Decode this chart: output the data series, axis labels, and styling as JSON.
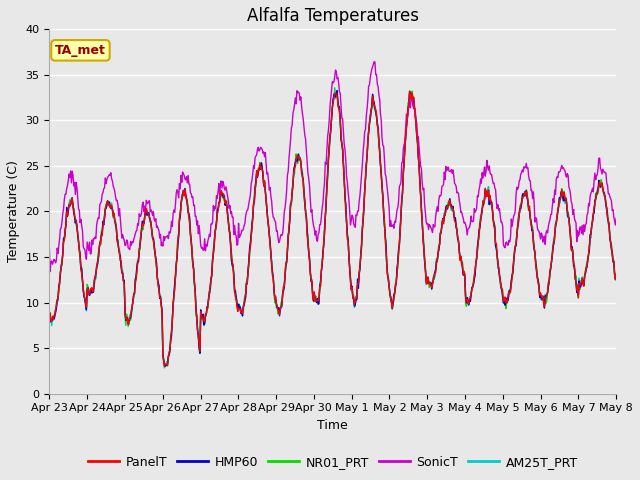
{
  "title": "Alfalfa Temperatures",
  "xlabel": "Time",
  "ylabel": "Temperature (C)",
  "ylim": [
    0,
    40
  ],
  "yticks": [
    0,
    5,
    10,
    15,
    20,
    25,
    30,
    35,
    40
  ],
  "fig_bg_color": "#e8e8e8",
  "plot_bg_color": "#e8e8e8",
  "series_colors": {
    "PanelT": "#ff0000",
    "HMP60": "#0000cc",
    "NR01_PRT": "#00dd00",
    "SonicT": "#cc00cc",
    "AM25T_PRT": "#00cccc"
  },
  "annotation_text": "TA_met",
  "annotation_color": "#990000",
  "annotation_bg": "#ffffaa",
  "annotation_border": "#ccaa00",
  "x_tick_labels": [
    "Apr 23",
    "Apr 24",
    "Apr 25",
    "Apr 26",
    "Apr 27",
    "Apr 28",
    "Apr 29",
    "Apr 30",
    "May 1",
    "May 2",
    "May 3",
    "May 4",
    "May 5",
    "May 6",
    "May 7",
    "May 8"
  ],
  "title_fontsize": 12,
  "axis_label_fontsize": 9,
  "tick_fontsize": 8,
  "legend_fontsize": 9,
  "line_width": 1.0,
  "grid_color": "#ffffff",
  "n_days": 15,
  "n_per_day": 48,
  "day_peaks": [
    21,
    21,
    20,
    22,
    22,
    25,
    26,
    33,
    32,
    33,
    21,
    22,
    22,
    22,
    23
  ],
  "day_troughs": [
    8,
    11,
    8,
    3,
    8,
    9,
    9,
    10,
    10,
    10,
    12,
    10,
    10,
    10,
    12
  ],
  "sonic_peaks": [
    24,
    24,
    21,
    24,
    23,
    27,
    33,
    35,
    36,
    32,
    25,
    25,
    25,
    25,
    25
  ],
  "sonic_troughs": [
    14,
    16,
    16,
    17,
    16,
    18,
    17,
    17,
    19,
    18,
    18,
    18,
    16,
    17,
    18
  ]
}
